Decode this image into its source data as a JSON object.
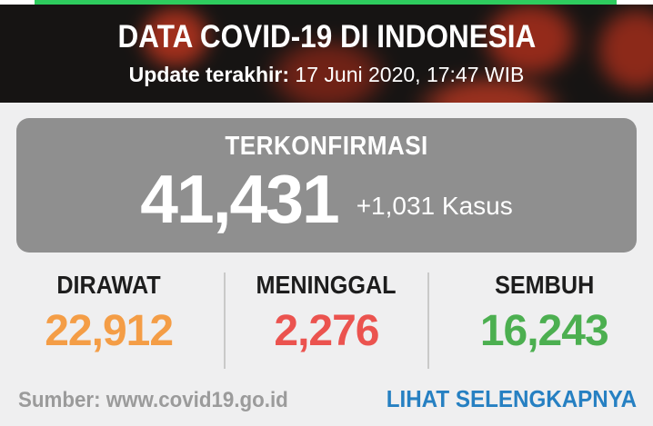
{
  "colors": {
    "progress_green": "#2ecc5e",
    "header_bg": "#161413",
    "page_bg": "#efeff0",
    "card_grey": "#8f8f8f",
    "label_dark": "#1d1d1d",
    "divider_grey": "#c9c9c9",
    "source_grey": "#9b9b9b",
    "link_blue": "#2680c2"
  },
  "header": {
    "title": "DATA COVID-19 DI INDONESIA",
    "update_label": "Update terakhir:",
    "update_value": " 17 Juni 2020, 17:47 WIB"
  },
  "confirmed": {
    "label": "TERKONFIRMASI",
    "value": "41,431",
    "delta": "+1,031 Kasus"
  },
  "stats": [
    {
      "label": "DIRAWAT",
      "value": "22,912",
      "color": "#f49d46"
    },
    {
      "label": "MENINGGAL",
      "value": "2,276",
      "color": "#eb534f"
    },
    {
      "label": "SEMBUH",
      "value": "16,243",
      "color": "#4caf50"
    }
  ],
  "footer": {
    "source": "Sumber: www.covid19.go.id",
    "link": "LIHAT SELENGKAPNYA"
  }
}
